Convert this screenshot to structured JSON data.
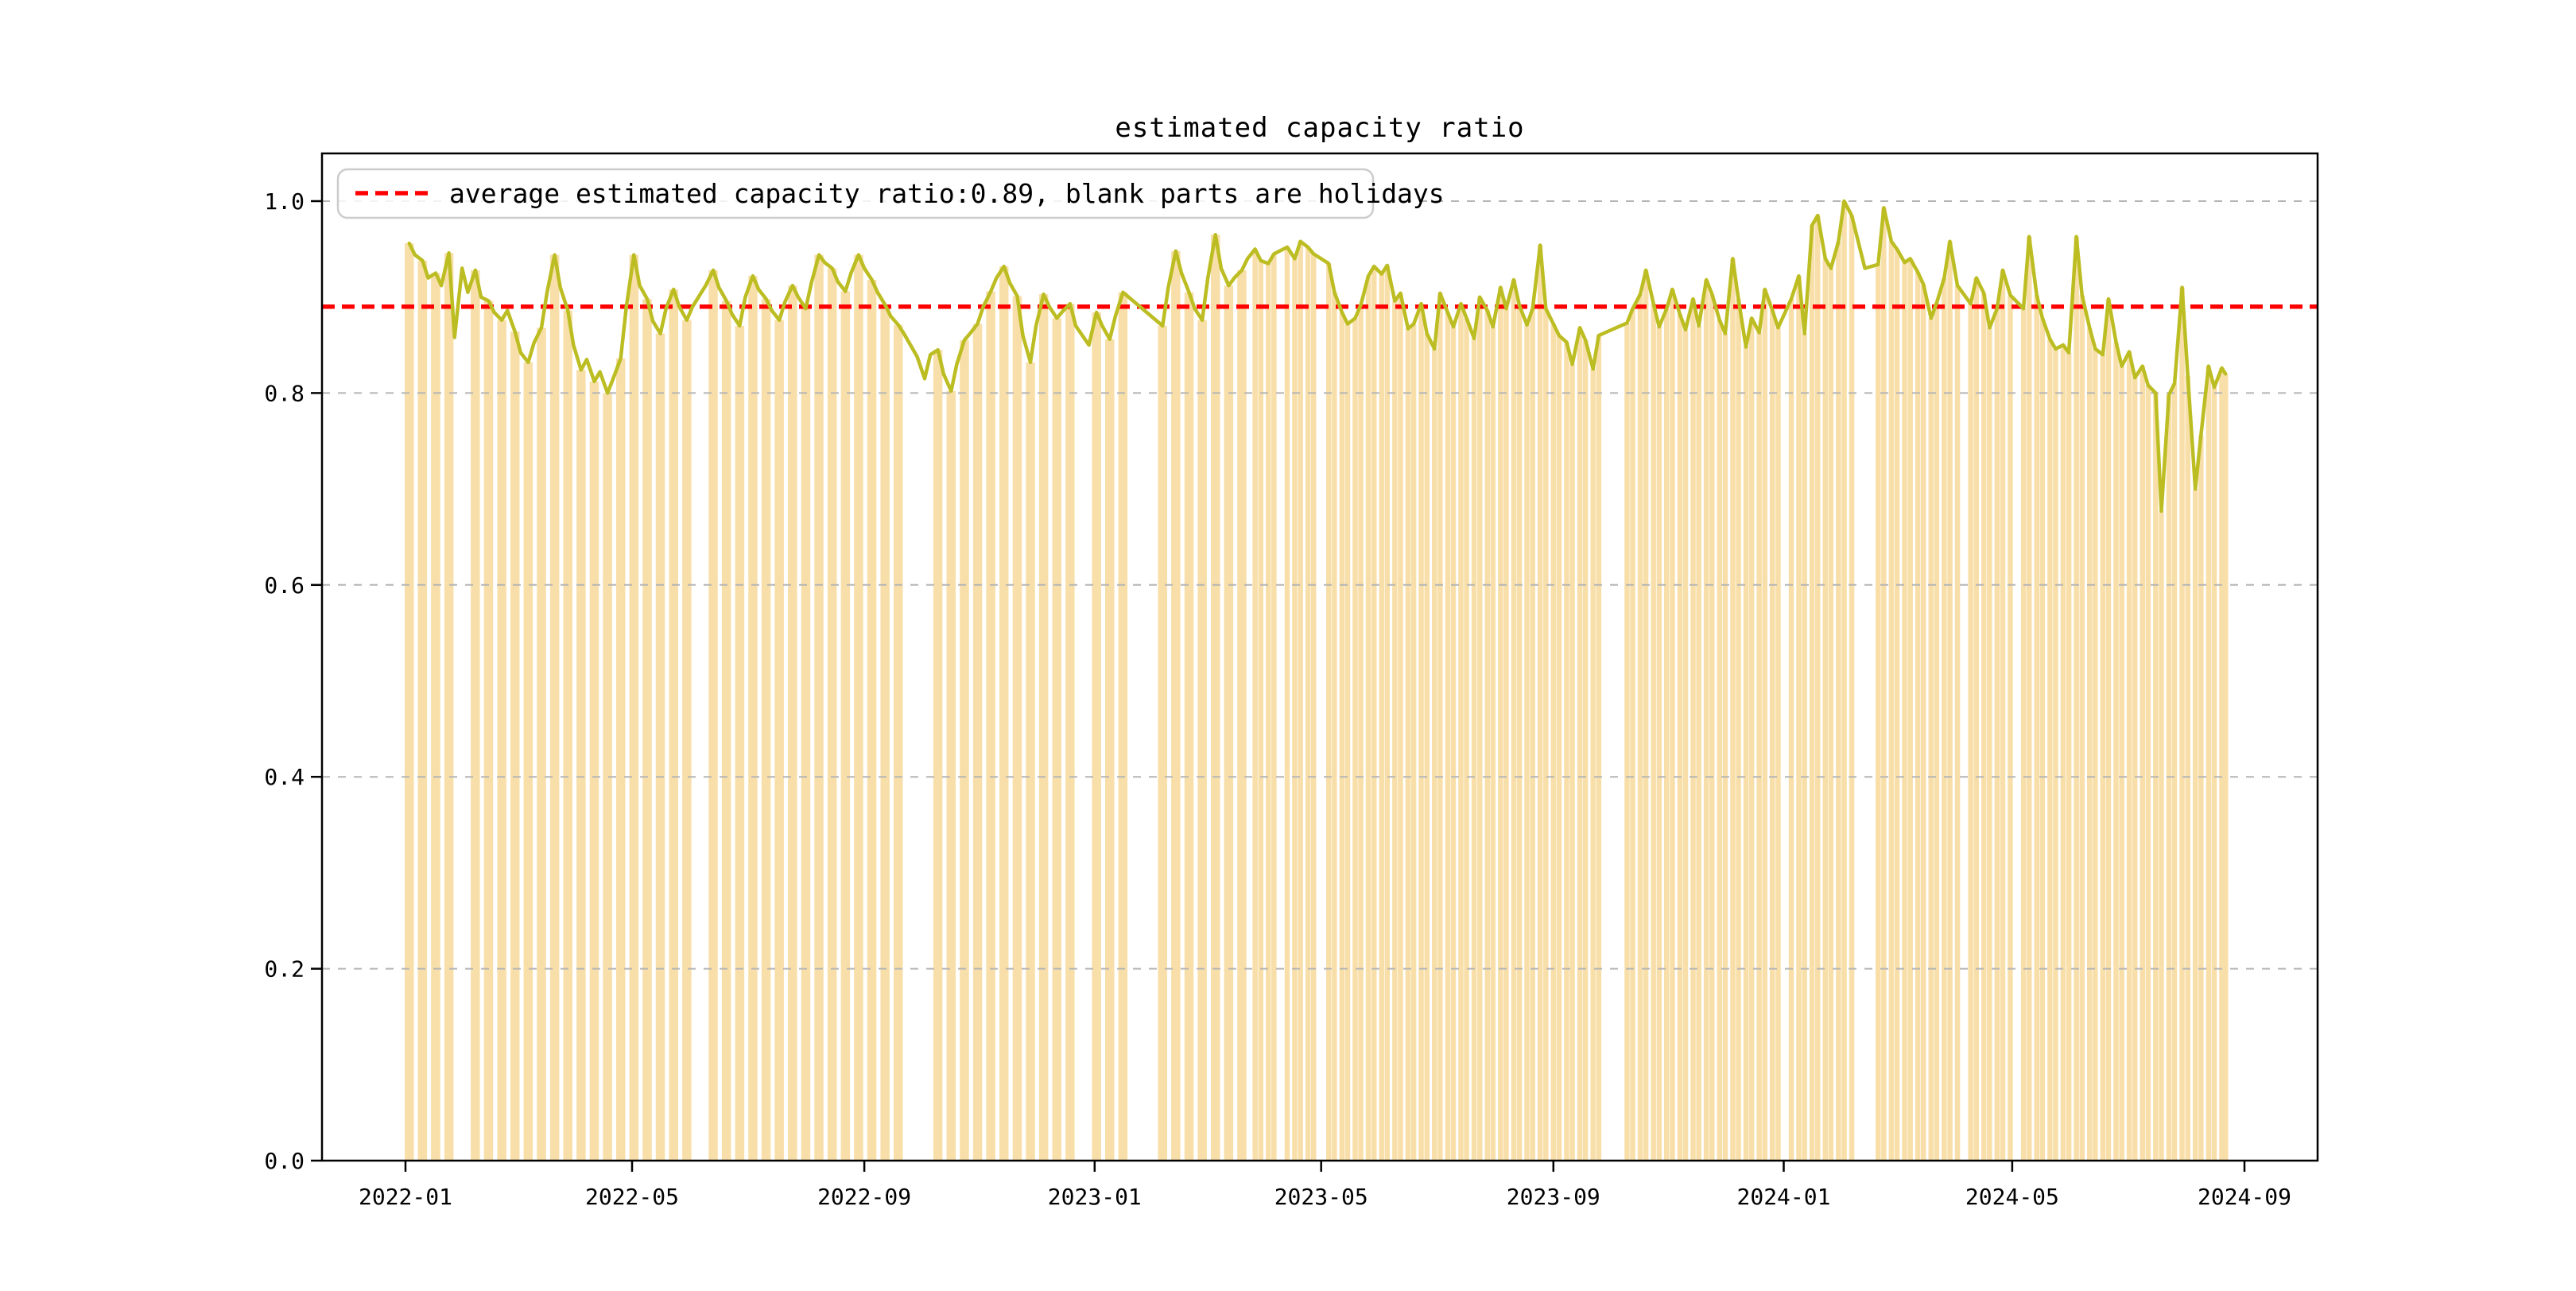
{
  "figure": {
    "title": "estimated capacity ratio",
    "background_color": "#ffffff"
  },
  "legend": {
    "label": "average estimated capacity ratio:0.89, blank parts are holidays",
    "sample_line_color": "#ff0000",
    "sample_line_style": "dashed",
    "position": "upper left"
  },
  "axes": {
    "y_tick_labels": [
      "0.0",
      "0.2",
      "0.4",
      "0.6",
      "0.8",
      "1.0"
    ],
    "x_tick_labels": [
      "2022-01",
      "2022-05",
      "2022-09",
      "2023-01",
      "2023-05",
      "2023-09",
      "2024-01",
      "2024-05",
      "2024-09"
    ]
  },
  "chart_data": {
    "type": "bar",
    "title": "estimated capacity ratio",
    "xlabel": "",
    "ylabel": "",
    "x_unit": "days since 2022-01-01",
    "x_tick_days": [
      0,
      120,
      243,
      365,
      485,
      608,
      730,
      851,
      974
    ],
    "x_tick_labels": [
      "2022-01",
      "2022-05",
      "2022-09",
      "2023-01",
      "2023-05",
      "2023-09",
      "2024-01",
      "2024-05",
      "2024-09"
    ],
    "y_ticks": [
      0.0,
      0.2,
      0.4,
      0.6,
      0.8,
      1.0
    ],
    "ylim": [
      0,
      1.05
    ],
    "xlim_days": [
      -44,
      1013
    ],
    "grid": {
      "axis": "y",
      "style": "dashed",
      "color": "#b5b5b5"
    },
    "legend_position": "upper left",
    "average_value": 0.89,
    "average_line": {
      "value": 0.89,
      "color": "#ff0000",
      "style": "dashed"
    },
    "bar_color": "#f8dfa9",
    "line_color": "#bcbd22",
    "bar_cadence_note": "bars weekly before day 448, twice-weekly after; blank spans are holidays",
    "weekly_bar_cutoff_day": 448,
    "holiday_gaps_days": [
      [
        28,
        36
      ],
      [
        154,
        162
      ],
      [
        266,
        281
      ],
      [
        357,
        365
      ],
      [
        383,
        399
      ],
      [
        462,
        466
      ],
      [
        483,
        488
      ],
      [
        634,
        646
      ],
      [
        729,
        733
      ],
      [
        768,
        779
      ],
      [
        823,
        827
      ],
      [
        851,
        856
      ]
    ],
    "points": [
      [
        2,
        0.956
      ],
      [
        5,
        0.944
      ],
      [
        9,
        0.938
      ],
      [
        12,
        0.92
      ],
      [
        16,
        0.925
      ],
      [
        19,
        0.912
      ],
      [
        23,
        0.946
      ],
      [
        26,
        0.858
      ],
      [
        30,
        0.93
      ],
      [
        33,
        0.905
      ],
      [
        37,
        0.928
      ],
      [
        40,
        0.9
      ],
      [
        44,
        0.896
      ],
      [
        47,
        0.884
      ],
      [
        51,
        0.876
      ],
      [
        54,
        0.886
      ],
      [
        58,
        0.864
      ],
      [
        61,
        0.842
      ],
      [
        65,
        0.832
      ],
      [
        68,
        0.852
      ],
      [
        72,
        0.868
      ],
      [
        75,
        0.905
      ],
      [
        79,
        0.944
      ],
      [
        82,
        0.91
      ],
      [
        86,
        0.886
      ],
      [
        89,
        0.85
      ],
      [
        93,
        0.824
      ],
      [
        96,
        0.835
      ],
      [
        100,
        0.812
      ],
      [
        103,
        0.822
      ],
      [
        107,
        0.8
      ],
      [
        110,
        0.815
      ],
      [
        114,
        0.836
      ],
      [
        117,
        0.89
      ],
      [
        121,
        0.944
      ],
      [
        124,
        0.912
      ],
      [
        128,
        0.898
      ],
      [
        131,
        0.875
      ],
      [
        135,
        0.862
      ],
      [
        138,
        0.888
      ],
      [
        142,
        0.908
      ],
      [
        145,
        0.89
      ],
      [
        149,
        0.876
      ],
      [
        152,
        0.89
      ],
      [
        159,
        0.912
      ],
      [
        163,
        0.928
      ],
      [
        166,
        0.91
      ],
      [
        170,
        0.896
      ],
      [
        173,
        0.882
      ],
      [
        177,
        0.87
      ],
      [
        180,
        0.9
      ],
      [
        184,
        0.922
      ],
      [
        187,
        0.908
      ],
      [
        191,
        0.898
      ],
      [
        194,
        0.886
      ],
      [
        198,
        0.876
      ],
      [
        201,
        0.895
      ],
      [
        205,
        0.912
      ],
      [
        208,
        0.9
      ],
      [
        212,
        0.888
      ],
      [
        215,
        0.915
      ],
      [
        219,
        0.944
      ],
      [
        222,
        0.936
      ],
      [
        226,
        0.93
      ],
      [
        229,
        0.916
      ],
      [
        233,
        0.906
      ],
      [
        236,
        0.925
      ],
      [
        240,
        0.944
      ],
      [
        243,
        0.93
      ],
      [
        247,
        0.918
      ],
      [
        250,
        0.905
      ],
      [
        254,
        0.892
      ],
      [
        257,
        0.88
      ],
      [
        261,
        0.871
      ],
      [
        264,
        0.862
      ],
      [
        271,
        0.838
      ],
      [
        275,
        0.815
      ],
      [
        278,
        0.84
      ],
      [
        282,
        0.845
      ],
      [
        285,
        0.82
      ],
      [
        289,
        0.802
      ],
      [
        292,
        0.83
      ],
      [
        296,
        0.855
      ],
      [
        299,
        0.862
      ],
      [
        303,
        0.872
      ],
      [
        306,
        0.89
      ],
      [
        310,
        0.906
      ],
      [
        313,
        0.92
      ],
      [
        317,
        0.932
      ],
      [
        320,
        0.915
      ],
      [
        324,
        0.901
      ],
      [
        327,
        0.86
      ],
      [
        331,
        0.832
      ],
      [
        334,
        0.87
      ],
      [
        338,
        0.903
      ],
      [
        341,
        0.89
      ],
      [
        345,
        0.878
      ],
      [
        348,
        0.885
      ],
      [
        352,
        0.893
      ],
      [
        355,
        0.87
      ],
      [
        362,
        0.85
      ],
      [
        366,
        0.884
      ],
      [
        369,
        0.87
      ],
      [
        373,
        0.856
      ],
      [
        376,
        0.88
      ],
      [
        380,
        0.905
      ],
      [
        401,
        0.87
      ],
      [
        404,
        0.91
      ],
      [
        408,
        0.948
      ],
      [
        411,
        0.925
      ],
      [
        415,
        0.905
      ],
      [
        418,
        0.888
      ],
      [
        422,
        0.876
      ],
      [
        425,
        0.92
      ],
      [
        429,
        0.965
      ],
      [
        432,
        0.93
      ],
      [
        436,
        0.912
      ],
      [
        439,
        0.92
      ],
      [
        443,
        0.928
      ],
      [
        446,
        0.94
      ],
      [
        450,
        0.95
      ],
      [
        453,
        0.938
      ],
      [
        457,
        0.935
      ],
      [
        460,
        0.945
      ],
      [
        467,
        0.952
      ],
      [
        471,
        0.94
      ],
      [
        474,
        0.958
      ],
      [
        478,
        0.952
      ],
      [
        481,
        0.945
      ],
      [
        489,
        0.935
      ],
      [
        492,
        0.905
      ],
      [
        496,
        0.884
      ],
      [
        499,
        0.872
      ],
      [
        503,
        0.878
      ],
      [
        506,
        0.892
      ],
      [
        510,
        0.922
      ],
      [
        513,
        0.932
      ],
      [
        517,
        0.924
      ],
      [
        520,
        0.933
      ],
      [
        524,
        0.896
      ],
      [
        527,
        0.904
      ],
      [
        531,
        0.867
      ],
      [
        534,
        0.872
      ],
      [
        538,
        0.893
      ],
      [
        541,
        0.862
      ],
      [
        545,
        0.846
      ],
      [
        548,
        0.904
      ],
      [
        552,
        0.884
      ],
      [
        555,
        0.869
      ],
      [
        559,
        0.893
      ],
      [
        562,
        0.878
      ],
      [
        566,
        0.857
      ],
      [
        569,
        0.9
      ],
      [
        573,
        0.886
      ],
      [
        576,
        0.869
      ],
      [
        580,
        0.91
      ],
      [
        583,
        0.888
      ],
      [
        587,
        0.918
      ],
      [
        590,
        0.891
      ],
      [
        594,
        0.871
      ],
      [
        597,
        0.888
      ],
      [
        601,
        0.954
      ],
      [
        604,
        0.888
      ],
      [
        608,
        0.872
      ],
      [
        611,
        0.86
      ],
      [
        615,
        0.853
      ],
      [
        618,
        0.83
      ],
      [
        622,
        0.868
      ],
      [
        625,
        0.855
      ],
      [
        629,
        0.825
      ],
      [
        632,
        0.86
      ],
      [
        647,
        0.873
      ],
      [
        650,
        0.888
      ],
      [
        654,
        0.903
      ],
      [
        657,
        0.928
      ],
      [
        661,
        0.893
      ],
      [
        664,
        0.869
      ],
      [
        668,
        0.888
      ],
      [
        671,
        0.908
      ],
      [
        675,
        0.882
      ],
      [
        678,
        0.866
      ],
      [
        682,
        0.898
      ],
      [
        685,
        0.87
      ],
      [
        689,
        0.918
      ],
      [
        692,
        0.903
      ],
      [
        696,
        0.876
      ],
      [
        699,
        0.862
      ],
      [
        703,
        0.94
      ],
      [
        706,
        0.898
      ],
      [
        710,
        0.848
      ],
      [
        713,
        0.878
      ],
      [
        717,
        0.863
      ],
      [
        720,
        0.908
      ],
      [
        724,
        0.886
      ],
      [
        727,
        0.868
      ],
      [
        734,
        0.898
      ],
      [
        738,
        0.922
      ],
      [
        741,
        0.862
      ],
      [
        745,
        0.975
      ],
      [
        748,
        0.985
      ],
      [
        752,
        0.94
      ],
      [
        755,
        0.93
      ],
      [
        759,
        0.958
      ],
      [
        762,
        1.0
      ],
      [
        766,
        0.985
      ],
      [
        773,
        0.93
      ],
      [
        780,
        0.934
      ],
      [
        783,
        0.993
      ],
      [
        787,
        0.958
      ],
      [
        790,
        0.95
      ],
      [
        794,
        0.936
      ],
      [
        797,
        0.94
      ],
      [
        801,
        0.926
      ],
      [
        804,
        0.913
      ],
      [
        808,
        0.878
      ],
      [
        811,
        0.894
      ],
      [
        815,
        0.92
      ],
      [
        818,
        0.958
      ],
      [
        822,
        0.912
      ],
      [
        829,
        0.893
      ],
      [
        832,
        0.92
      ],
      [
        836,
        0.904
      ],
      [
        839,
        0.868
      ],
      [
        843,
        0.888
      ],
      [
        846,
        0.928
      ],
      [
        850,
        0.902
      ],
      [
        857,
        0.888
      ],
      [
        860,
        0.963
      ],
      [
        864,
        0.902
      ],
      [
        867,
        0.878
      ],
      [
        871,
        0.856
      ],
      [
        874,
        0.846
      ],
      [
        878,
        0.85
      ],
      [
        881,
        0.842
      ],
      [
        885,
        0.963
      ],
      [
        888,
        0.902
      ],
      [
        892,
        0.868
      ],
      [
        895,
        0.846
      ],
      [
        899,
        0.84
      ],
      [
        902,
        0.898
      ],
      [
        906,
        0.853
      ],
      [
        909,
        0.828
      ],
      [
        913,
        0.843
      ],
      [
        916,
        0.816
      ],
      [
        920,
        0.828
      ],
      [
        923,
        0.808
      ],
      [
        927,
        0.8
      ],
      [
        930,
        0.677
      ],
      [
        934,
        0.798
      ],
      [
        937,
        0.81
      ],
      [
        941,
        0.91
      ],
      [
        944,
        0.818
      ],
      [
        948,
        0.7
      ],
      [
        951,
        0.756
      ],
      [
        955,
        0.828
      ],
      [
        958,
        0.806
      ],
      [
        962,
        0.826
      ],
      [
        964,
        0.82
      ]
    ]
  }
}
